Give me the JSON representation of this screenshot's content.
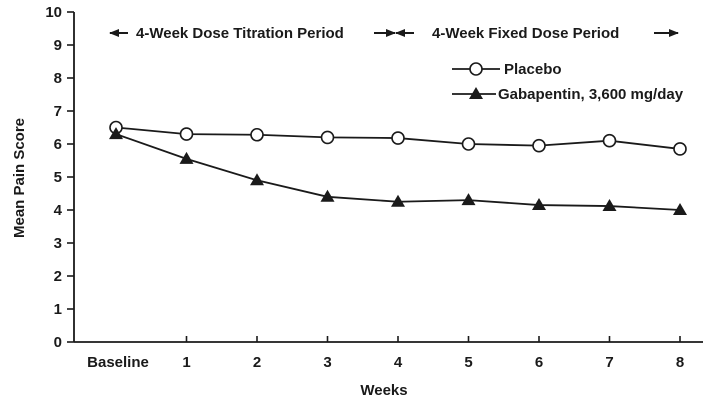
{
  "chart_data": {
    "type": "line",
    "xlabel": "Weeks",
    "ylabel": "Mean Pain Score",
    "categories": [
      "Baseline",
      "1",
      "2",
      "3",
      "4",
      "5",
      "6",
      "7",
      "8"
    ],
    "ylim": [
      0,
      10
    ],
    "yticks": [
      "0",
      "1",
      "2",
      "3",
      "4",
      "5",
      "6",
      "7",
      "8",
      "9",
      "10"
    ],
    "grid": false,
    "legend_position": "top-right",
    "periods": [
      {
        "label": "4-Week Dose Titration Period"
      },
      {
        "label": "4-Week Fixed Dose Period"
      }
    ],
    "series": [
      {
        "name": "Placebo",
        "marker": "open-circle",
        "values": [
          6.5,
          6.3,
          6.28,
          6.2,
          6.18,
          6.0,
          5.95,
          6.1,
          5.85
        ]
      },
      {
        "name": "Gabapentin, 3,600 mg/day",
        "marker": "filled-triangle",
        "values": [
          6.3,
          5.55,
          4.9,
          4.4,
          4.25,
          4.3,
          4.15,
          4.12,
          4.0
        ]
      }
    ]
  }
}
